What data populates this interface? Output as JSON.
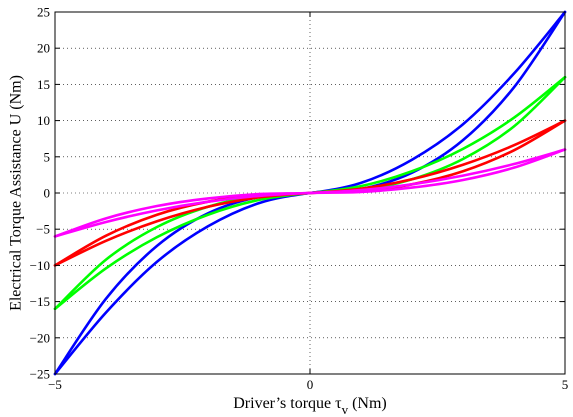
{
  "chart_data": {
    "type": "line",
    "title": "",
    "xlabel_main": "Driver’s torque τ",
    "xlabel_sub": "v",
    "xlabel_unit": " (Nm)",
    "ylabel": "Electrical Torque Assistance U (Nm)",
    "xlim": [
      -5,
      5
    ],
    "ylim": [
      -25,
      25
    ],
    "xticks": [
      -5,
      0,
      5
    ],
    "yticks": [
      -25,
      -20,
      -15,
      -10,
      -5,
      0,
      5,
      10,
      15,
      20,
      25
    ],
    "xtick_labels": [
      "−5",
      "0",
      "5"
    ],
    "ytick_labels": [
      "−25",
      "−20",
      "−15",
      "−10",
      "−5",
      "0",
      "5",
      "10",
      "15",
      "20",
      "25"
    ],
    "grid": true,
    "legend": "none",
    "series": [
      {
        "color": "#0000ff",
        "amplitude": 25,
        "upper": [
          [
            -5,
            -25
          ],
          [
            -4,
            -16.5
          ],
          [
            -3,
            -9.5
          ],
          [
            -2,
            -4.6
          ],
          [
            -1,
            -1.4
          ],
          [
            0,
            0
          ],
          [
            1,
            0.55
          ],
          [
            2,
            2.8
          ],
          [
            3,
            7.3
          ],
          [
            4,
            14.6
          ],
          [
            5,
            25
          ]
        ],
        "lower": [
          [
            -5,
            -25
          ],
          [
            -4,
            -14.6
          ],
          [
            -3,
            -7.3
          ],
          [
            -2,
            -2.8
          ],
          [
            -1,
            -0.55
          ],
          [
            0,
            0
          ],
          [
            1,
            1.4
          ],
          [
            2,
            4.6
          ],
          [
            3,
            9.5
          ],
          [
            4,
            16.5
          ],
          [
            5,
            25
          ]
        ]
      },
      {
        "color": "#00ff00",
        "amplitude": 16,
        "upper": [
          [
            -5,
            -16
          ],
          [
            -4,
            -10.4
          ],
          [
            -3,
            -6.1
          ],
          [
            -2,
            -3.0
          ],
          [
            -1,
            -0.95
          ],
          [
            0,
            0
          ],
          [
            1,
            0.4
          ],
          [
            2,
            1.9
          ],
          [
            3,
            4.7
          ],
          [
            4,
            9.2
          ],
          [
            5,
            16
          ]
        ],
        "lower": [
          [
            -5,
            -16
          ],
          [
            -4,
            -9.2
          ],
          [
            -3,
            -4.7
          ],
          [
            -2,
            -1.9
          ],
          [
            -1,
            -0.4
          ],
          [
            0,
            0
          ],
          [
            1,
            0.95
          ],
          [
            2,
            3.0
          ],
          [
            3,
            6.1
          ],
          [
            4,
            10.4
          ],
          [
            5,
            16
          ]
        ]
      },
      {
        "color": "#ff0000",
        "amplitude": 10,
        "upper": [
          [
            -5,
            -10
          ],
          [
            -4,
            -6.6
          ],
          [
            -3,
            -3.9
          ],
          [
            -2,
            -1.9
          ],
          [
            -1,
            -0.6
          ],
          [
            0,
            0
          ],
          [
            1,
            0.25
          ],
          [
            2,
            1.2
          ],
          [
            3,
            3.0
          ],
          [
            4,
            5.9
          ],
          [
            5,
            10
          ]
        ],
        "lower": [
          [
            -5,
            -10
          ],
          [
            -4,
            -5.9
          ],
          [
            -3,
            -3.0
          ],
          [
            -2,
            -1.2
          ],
          [
            -1,
            -0.25
          ],
          [
            0,
            0
          ],
          [
            1,
            0.6
          ],
          [
            2,
            1.9
          ],
          [
            3,
            3.9
          ],
          [
            4,
            6.6
          ],
          [
            5,
            10
          ]
        ]
      },
      {
        "color": "#ff00ff",
        "amplitude": 6,
        "upper": [
          [
            -5,
            -6
          ],
          [
            -4,
            -4.0
          ],
          [
            -3,
            -2.4
          ],
          [
            -2,
            -1.2
          ],
          [
            -1,
            -0.4
          ],
          [
            0,
            0
          ],
          [
            1,
            0.15
          ],
          [
            2,
            0.75
          ],
          [
            3,
            1.8
          ],
          [
            4,
            3.5
          ],
          [
            5,
            6
          ]
        ],
        "lower": [
          [
            -5,
            -6
          ],
          [
            -4,
            -3.5
          ],
          [
            -3,
            -1.8
          ],
          [
            -2,
            -0.75
          ],
          [
            -1,
            -0.15
          ],
          [
            0,
            0
          ],
          [
            1,
            0.4
          ],
          [
            2,
            1.2
          ],
          [
            3,
            2.4
          ],
          [
            4,
            4.0
          ],
          [
            5,
            6
          ]
        ]
      }
    ]
  }
}
